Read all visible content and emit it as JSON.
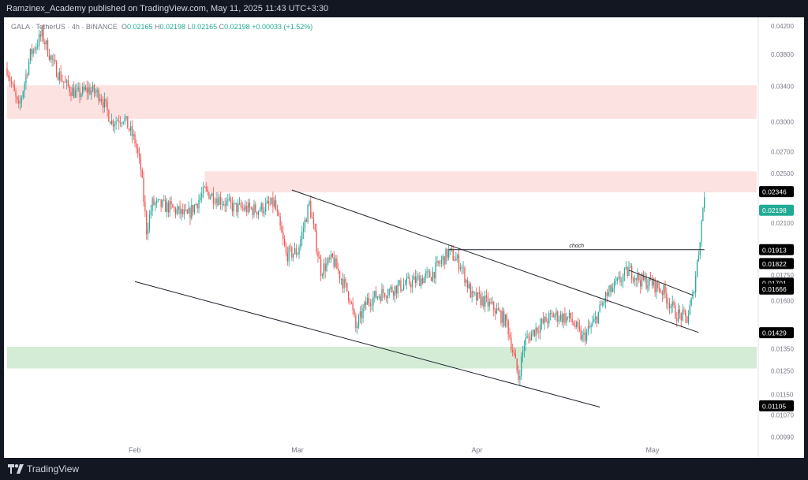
{
  "header": {
    "published_text": "Ramzinex_Academy published on TradingView.com, May 11, 2025 11:43 UTC+3:30"
  },
  "legend": {
    "symbol": "GALA",
    "pair": "TetherUS",
    "interval": "4h",
    "exchange": "BINANCE",
    "o_label": "O",
    "o_value": "0.02165",
    "h_label": "H",
    "h_value": "0.02198",
    "l_label": "L",
    "l_value": "0.02165",
    "c_label": "C",
    "c_value": "0.02198",
    "change": "+0.00033 (+1.52%)"
  },
  "footer": {
    "brand": "TradingView"
  },
  "colors": {
    "up": "#26a69a",
    "down": "#ef5350",
    "supply_zone": "#fde2e2",
    "demand_zone": "#d4ecd6",
    "price_tag_current": "#22ab94",
    "price_tag_level": "#000000"
  },
  "chart_data": {
    "type": "candlestick",
    "x_labels": [
      "Feb",
      "Mar",
      "Apr",
      "May"
    ],
    "y_ticks": [
      "0.04200",
      "0.03800",
      "0.03400",
      "0.03000",
      "0.02700",
      "0.02500",
      "0.02100",
      "0.01750",
      "0.01600",
      "0.01350",
      "0.01250",
      "0.01150",
      "0.01070",
      "0.00990"
    ],
    "y_scale": "log",
    "y_range": [
      0.0092,
      0.0433
    ],
    "x_range": [
      "2025-01-10",
      "2025-05-19"
    ],
    "price_tags": [
      {
        "value": 0.02346,
        "label": "0.02346",
        "style": "level"
      },
      {
        "value": 0.02198,
        "label": "0.02198",
        "style": "current"
      },
      {
        "value": 0.01913,
        "label": "0.01913",
        "style": "level"
      },
      {
        "value": 0.01822,
        "label": "0.01822",
        "style": "level"
      },
      {
        "value": 0.01701,
        "label": "0.01701",
        "style": "level"
      },
      {
        "value": 0.01666,
        "label": "0.01666",
        "style": "level"
      },
      {
        "value": 0.01429,
        "label": "0.01429",
        "style": "level"
      },
      {
        "value": 0.01105,
        "label": "0.01105",
        "style": "level"
      }
    ],
    "zones": [
      {
        "kind": "supply",
        "from": "2025-01-10",
        "to": "2025-05-19",
        "low": 0.0303,
        "high": 0.0341
      },
      {
        "kind": "supply",
        "from": "2025-02-13",
        "to": "2025-05-19",
        "low": 0.0234,
        "high": 0.0252
      },
      {
        "kind": "demand",
        "from": "2025-01-10",
        "to": "2025-05-19",
        "low": 0.0126,
        "high": 0.0136
      }
    ],
    "lines": [
      {
        "name": "channel-upper",
        "p1": [
          "2025-02-28",
          0.0236
        ],
        "p2": [
          "2025-05-09",
          0.0143
        ]
      },
      {
        "name": "channel-lower",
        "p1": [
          "2025-02-01",
          0.0171
        ],
        "p2": [
          "2025-04-22",
          0.011
        ]
      },
      {
        "name": "wedge-upper",
        "p1": [
          "2025-04-27",
          0.0178
        ],
        "p2": [
          "2025-05-08",
          0.0163
        ]
      },
      {
        "name": "choch",
        "p1": [
          "2025-03-27",
          0.01913
        ],
        "p2": [
          "2025-05-10",
          0.01913
        ],
        "label": "choch"
      }
    ],
    "close_path": [
      [
        "2025-01-10",
        0.0362
      ],
      [
        "2025-01-12",
        0.0313
      ],
      [
        "2025-01-14",
        0.038
      ],
      [
        "2025-01-16",
        0.0408
      ],
      [
        "2025-01-18",
        0.0366
      ],
      [
        "2025-01-20",
        0.0342
      ],
      [
        "2025-01-22",
        0.033
      ],
      [
        "2025-01-24",
        0.0336
      ],
      [
        "2025-01-26",
        0.033
      ],
      [
        "2025-01-28",
        0.03
      ],
      [
        "2025-01-30",
        0.0305
      ],
      [
        "2025-02-01",
        0.028
      ],
      [
        "2025-02-02",
        0.0254
      ],
      [
        "2025-02-03",
        0.0205
      ],
      [
        "2025-02-04",
        0.0225
      ],
      [
        "2025-02-07",
        0.0222
      ],
      [
        "2025-02-10",
        0.0215
      ],
      [
        "2025-02-13",
        0.0235
      ],
      [
        "2025-02-15",
        0.023
      ],
      [
        "2025-02-18",
        0.0222
      ],
      [
        "2025-02-22",
        0.022
      ],
      [
        "2025-02-25",
        0.0225
      ],
      [
        "2025-02-27",
        0.0188
      ],
      [
        "2025-03-01",
        0.019
      ],
      [
        "2025-03-03",
        0.0225
      ],
      [
        "2025-03-05",
        0.0178
      ],
      [
        "2025-03-07",
        0.0185
      ],
      [
        "2025-03-10",
        0.0162
      ],
      [
        "2025-03-11",
        0.0145
      ],
      [
        "2025-03-13",
        0.016
      ],
      [
        "2025-03-16",
        0.0165
      ],
      [
        "2025-03-20",
        0.017
      ],
      [
        "2025-03-24",
        0.0175
      ],
      [
        "2025-03-27",
        0.019
      ],
      [
        "2025-03-29",
        0.0182
      ],
      [
        "2025-03-31",
        0.0162
      ],
      [
        "2025-04-02",
        0.016
      ],
      [
        "2025-04-04",
        0.0155
      ],
      [
        "2025-04-06",
        0.0148
      ],
      [
        "2025-04-08",
        0.0122
      ],
      [
        "2025-04-09",
        0.0138
      ],
      [
        "2025-04-11",
        0.0145
      ],
      [
        "2025-04-14",
        0.0152
      ],
      [
        "2025-04-17",
        0.015
      ],
      [
        "2025-04-19",
        0.014
      ],
      [
        "2025-04-21",
        0.0148
      ],
      [
        "2025-04-23",
        0.0162
      ],
      [
        "2025-04-25",
        0.017
      ],
      [
        "2025-04-27",
        0.0178
      ],
      [
        "2025-04-29",
        0.0172
      ],
      [
        "2025-05-01",
        0.017
      ],
      [
        "2025-05-03",
        0.0165
      ],
      [
        "2025-05-05",
        0.0153
      ],
      [
        "2025-05-07",
        0.015
      ],
      [
        "2025-05-08",
        0.0162
      ],
      [
        "2025-05-09",
        0.019
      ],
      [
        "2025-05-10",
        0.0234
      ],
      [
        "2025-05-10",
        0.022
      ]
    ]
  }
}
